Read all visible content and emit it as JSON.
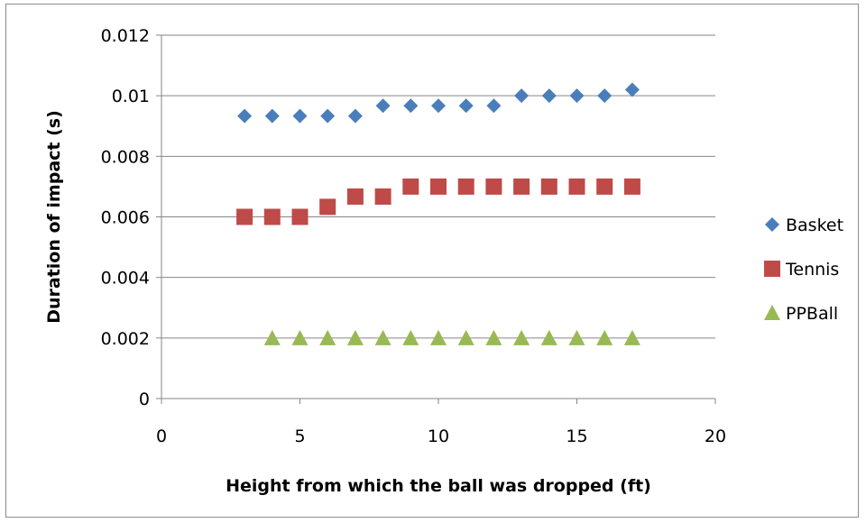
{
  "chart_data": {
    "type": "scatter",
    "title": "",
    "xlabel": "Height from which the ball was dropped (ft)",
    "ylabel": "Duration of impact (s)",
    "xlim": [
      0,
      20
    ],
    "ylim": [
      0,
      0.012
    ],
    "x_ticks": [
      "0",
      "5",
      "10",
      "15",
      "20"
    ],
    "y_ticks": [
      "0",
      "0.002",
      "0.004",
      "0.006",
      "0.008",
      "0.01",
      "0.012"
    ],
    "grid": "horizontal",
    "legend_position": "right",
    "series": [
      {
        "name": "Basket",
        "marker": "diamond",
        "color": "#4a7ebb",
        "x": [
          3,
          4,
          5,
          6,
          7,
          8,
          9,
          10,
          11,
          12,
          13,
          14,
          15,
          16,
          17
        ],
        "y": [
          0.00933,
          0.00933,
          0.00933,
          0.00933,
          0.00933,
          0.00967,
          0.00967,
          0.00967,
          0.00967,
          0.00967,
          0.01,
          0.01,
          0.01,
          0.01,
          0.0102
        ]
      },
      {
        "name": "Tennis",
        "marker": "square",
        "color": "#be4b48",
        "x": [
          3,
          4,
          5,
          6,
          7,
          8,
          9,
          10,
          11,
          12,
          13,
          14,
          15,
          16,
          17
        ],
        "y": [
          0.006,
          0.006,
          0.006,
          0.00633,
          0.00667,
          0.00667,
          0.007,
          0.007,
          0.007,
          0.007,
          0.007,
          0.007,
          0.007,
          0.007,
          0.007
        ]
      },
      {
        "name": "PPBall",
        "marker": "triangle",
        "color": "#98b954",
        "x": [
          4,
          5,
          6,
          7,
          8,
          9,
          10,
          11,
          12,
          13,
          14,
          15,
          16,
          17
        ],
        "y": [
          0.002,
          0.002,
          0.002,
          0.002,
          0.002,
          0.002,
          0.002,
          0.002,
          0.002,
          0.002,
          0.002,
          0.002,
          0.002,
          0.002
        ]
      }
    ]
  }
}
